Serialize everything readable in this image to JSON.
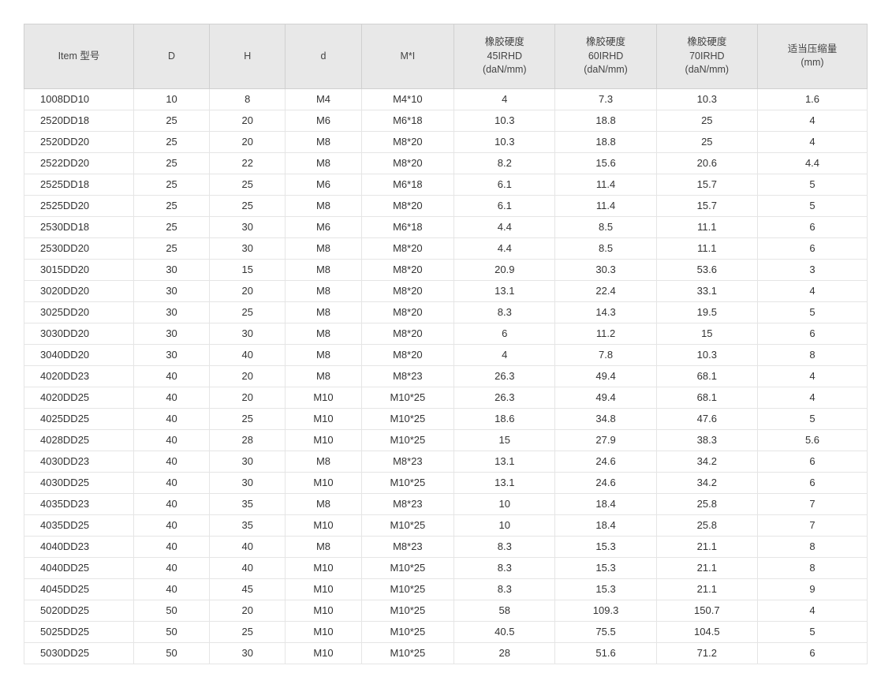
{
  "table": {
    "type": "table",
    "background_color": "#ffffff",
    "header_bg": "#e8e8e8",
    "border_color": "#d0d0d0",
    "row_border_color": "#e5e5e5",
    "text_color": "#333333",
    "font_size_header": 13,
    "font_size_body": 13,
    "col_widths_pct": [
      13,
      9,
      9,
      9,
      11,
      12,
      12,
      12,
      13
    ],
    "columns": [
      {
        "line1": "Item 型号"
      },
      {
        "line1": "D"
      },
      {
        "line1": "H"
      },
      {
        "line1": "d"
      },
      {
        "line1": "M*I"
      },
      {
        "line1": "橡胶硬度",
        "line2": "45IRHD",
        "line3": "(daN/mm)"
      },
      {
        "line1": "橡胶硬度",
        "line2": "60IRHD",
        "line3": "(daN/mm)"
      },
      {
        "line1": "橡胶硬度",
        "line2": "70IRHD",
        "line3": "(daN/mm)"
      },
      {
        "line1": "适当压缩量",
        "line2": "(mm)"
      }
    ],
    "rows": [
      [
        "1008DD10",
        "10",
        "8",
        "M4",
        "M4*10",
        "4",
        "7.3",
        "10.3",
        "1.6"
      ],
      [
        "2520DD18",
        "25",
        "20",
        "M6",
        "M6*18",
        "10.3",
        "18.8",
        "25",
        "4"
      ],
      [
        "2520DD20",
        "25",
        "20",
        "M8",
        "M8*20",
        "10.3",
        "18.8",
        "25",
        "4"
      ],
      [
        "2522DD20",
        "25",
        "22",
        "M8",
        "M8*20",
        "8.2",
        "15.6",
        "20.6",
        "4.4"
      ],
      [
        "2525DD18",
        "25",
        "25",
        "M6",
        "M6*18",
        "6.1",
        "11.4",
        "15.7",
        "5"
      ],
      [
        "2525DD20",
        "25",
        "25",
        "M8",
        "M8*20",
        "6.1",
        "11.4",
        "15.7",
        "5"
      ],
      [
        "2530DD18",
        "25",
        "30",
        "M6",
        "M6*18",
        "4.4",
        "8.5",
        "11.1",
        "6"
      ],
      [
        "2530DD20",
        "25",
        "30",
        "M8",
        "M8*20",
        "4.4",
        "8.5",
        "11.1",
        "6"
      ],
      [
        "3015DD20",
        "30",
        "15",
        "M8",
        "M8*20",
        "20.9",
        "30.3",
        "53.6",
        "3"
      ],
      [
        "3020DD20",
        "30",
        "20",
        "M8",
        "M8*20",
        "13.1",
        "22.4",
        "33.1",
        "4"
      ],
      [
        "3025DD20",
        "30",
        "25",
        "M8",
        "M8*20",
        "8.3",
        "14.3",
        "19.5",
        "5"
      ],
      [
        "3030DD20",
        "30",
        "30",
        "M8",
        "M8*20",
        "6",
        "11.2",
        "15",
        "6"
      ],
      [
        "3040DD20",
        "30",
        "40",
        "M8",
        "M8*20",
        "4",
        "7.8",
        "10.3",
        "8"
      ],
      [
        "4020DD23",
        "40",
        "20",
        "M8",
        "M8*23",
        "26.3",
        "49.4",
        "68.1",
        "4"
      ],
      [
        "4020DD25",
        "40",
        "20",
        "M10",
        "M10*25",
        "26.3",
        "49.4",
        "68.1",
        "4"
      ],
      [
        "4025DD25",
        "40",
        "25",
        "M10",
        "M10*25",
        "18.6",
        "34.8",
        "47.6",
        "5"
      ],
      [
        "4028DD25",
        "40",
        "28",
        "M10",
        "M10*25",
        "15",
        "27.9",
        "38.3",
        "5.6"
      ],
      [
        "4030DD23",
        "40",
        "30",
        "M8",
        "M8*23",
        "13.1",
        "24.6",
        "34.2",
        "6"
      ],
      [
        "4030DD25",
        "40",
        "30",
        "M10",
        "M10*25",
        "13.1",
        "24.6",
        "34.2",
        "6"
      ],
      [
        "4035DD23",
        "40",
        "35",
        "M8",
        "M8*23",
        "10",
        "18.4",
        "25.8",
        "7"
      ],
      [
        "4035DD25",
        "40",
        "35",
        "M10",
        "M10*25",
        "10",
        "18.4",
        "25.8",
        "7"
      ],
      [
        "4040DD23",
        "40",
        "40",
        "M8",
        "M8*23",
        "8.3",
        "15.3",
        "21.1",
        "8"
      ],
      [
        "4040DD25",
        "40",
        "40",
        "M10",
        "M10*25",
        "8.3",
        "15.3",
        "21.1",
        "8"
      ],
      [
        "4045DD25",
        "40",
        "45",
        "M10",
        "M10*25",
        "8.3",
        "15.3",
        "21.1",
        "9"
      ],
      [
        "5020DD25",
        "50",
        "20",
        "M10",
        "M10*25",
        "58",
        "109.3",
        "150.7",
        "4"
      ],
      [
        "5025DD25",
        "50",
        "25",
        "M10",
        "M10*25",
        "40.5",
        "75.5",
        "104.5",
        "5"
      ],
      [
        "5030DD25",
        "50",
        "30",
        "M10",
        "M10*25",
        "28",
        "51.6",
        "71.2",
        "6"
      ]
    ]
  }
}
